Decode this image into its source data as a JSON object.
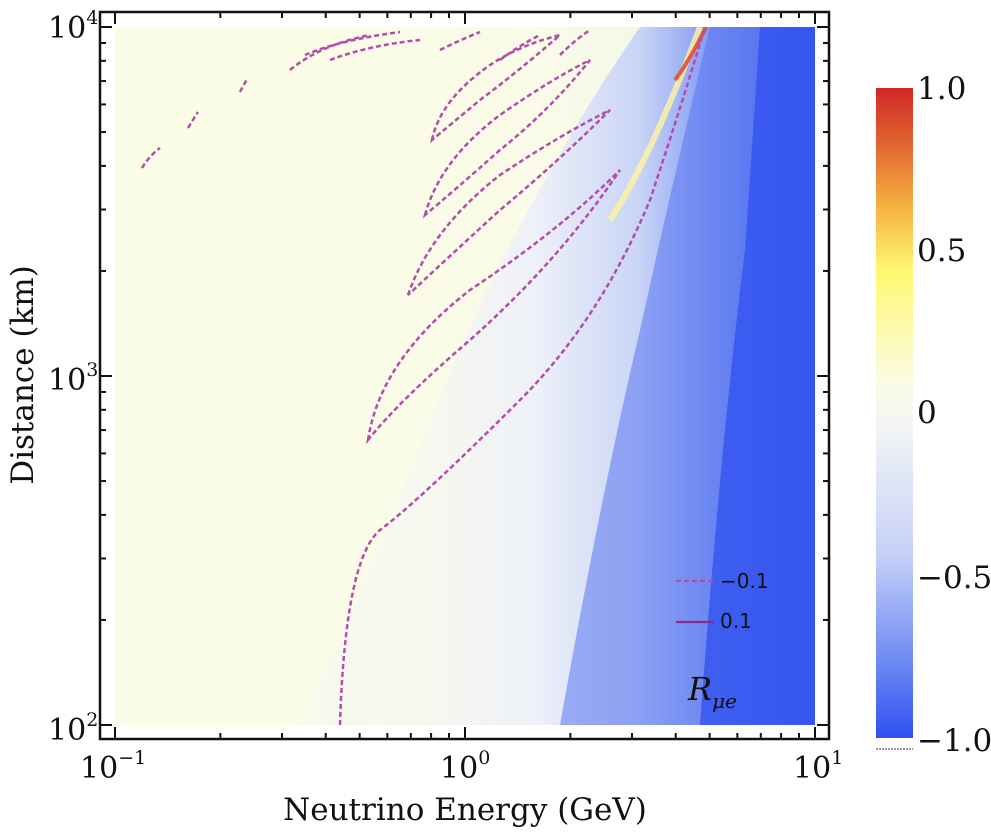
{
  "chart_data": {
    "type": "heatmap",
    "title": "",
    "xlabel": "Neutrino Energy (GeV)",
    "ylabel": "Distance (km)",
    "xscale": "log",
    "yscale": "log",
    "xlim": [
      0.1,
      10
    ],
    "ylim": [
      100,
      10000
    ],
    "x_ticks": [
      {
        "value": 0.1,
        "base": "10",
        "exp": "−1"
      },
      {
        "value": 1,
        "base": "10",
        "exp": "0"
      },
      {
        "value": 10,
        "base": "10",
        "exp": "1"
      }
    ],
    "y_ticks": [
      {
        "value": 100,
        "base": "10",
        "exp": "2"
      },
      {
        "value": 1000,
        "base": "10",
        "exp": "3"
      },
      {
        "value": 10000,
        "base": "10",
        "exp": "4"
      }
    ],
    "colorbar": {
      "range": [
        -1,
        1
      ],
      "ticks": [
        {
          "value": 1,
          "label": "1.0"
        },
        {
          "value": 0.5,
          "label": "0.5"
        },
        {
          "value": 0,
          "label": "0"
        },
        {
          "value": -0.5,
          "label": "−0.5"
        },
        {
          "value": -1,
          "label": "−1.0"
        }
      ],
      "colors": [
        "#3050f0",
        "#6f8bf3",
        "#c5d0f7",
        "#f5f7f5",
        "#fafbe0",
        "#fff870",
        "#f4b040",
        "#e06030",
        "#d03028"
      ]
    },
    "contour_levels": [
      -0.1,
      0.1
    ],
    "legend": {
      "placement": "bottom-right",
      "entries": [
        {
          "label": "−0.1",
          "style": "dashed",
          "color": "#b24ea9"
        },
        {
          "label": "0.1",
          "style": "solid",
          "color": "#8a2a8a"
        }
      ]
    },
    "annotation": {
      "main": "R",
      "sub": "μe"
    },
    "transition_line": [
      [
        0.43,
        100
      ],
      [
        0.6,
        300
      ],
      [
        1.0,
        1000
      ],
      [
        2.0,
        3000
      ],
      [
        4.7,
        10000
      ]
    ]
  }
}
